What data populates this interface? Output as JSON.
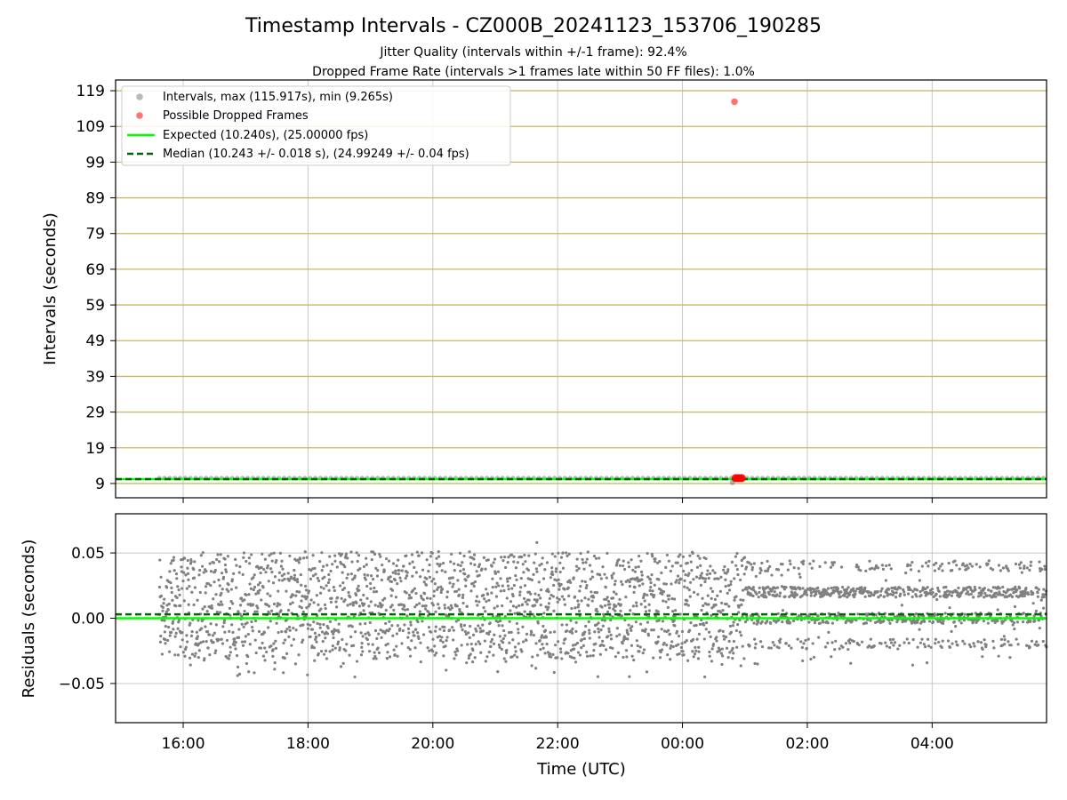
{
  "title": "Timestamp Intervals - CZ000B_20241123_153706_190285",
  "subtitle_1": "Jitter Quality (intervals within +/-1 frame): 92.4%",
  "subtitle_2": "Dropped Frame Rate (intervals >1 frames late within 50 FF files): 1.0%",
  "colors": {
    "intervals": "#808080",
    "dropped": "#ff0000",
    "expected": "#00ff00",
    "median": "#006400",
    "hgrid_top": "#c8b86a",
    "grid": "#b0b0b0"
  },
  "chart_data": [
    {
      "type": "scatter",
      "panel": "intervals",
      "ylabel": "Intervals (seconds)",
      "ylim": [
        5,
        122
      ],
      "yticks": [
        9,
        19,
        29,
        39,
        49,
        59,
        69,
        79,
        89,
        99,
        109,
        119
      ],
      "xlim": [
        "14:55",
        "05:50"
      ],
      "xticks": [
        "16:00",
        "18:00",
        "20:00",
        "22:00",
        "00:00",
        "02:00",
        "04:00"
      ],
      "x_range_data": [
        "15:37",
        "05:50"
      ],
      "intervals_band": [
        10.1,
        10.45
      ],
      "intervals_min": 9.265,
      "intervals_max": 115.917,
      "dropped_points": [
        {
          "time": "00:50",
          "value": 115.917
        },
        {
          "time": "00:51",
          "value": 10.5
        },
        {
          "time": "00:53",
          "value": 10.5
        },
        {
          "time": "00:55",
          "value": 10.5
        },
        {
          "time": "00:57",
          "value": 10.5
        }
      ],
      "expected": 10.24,
      "median": 10.243,
      "grid": true,
      "legend": {
        "position": "top-left",
        "entries": [
          "Intervals, max (115.917s), min (9.265s)",
          "Possible Dropped Frames",
          "Expected (10.240s), (25.00000 fps)",
          "Median (10.243 +/- 0.018 s), (24.99249 +/- 0.04 fps)"
        ]
      }
    },
    {
      "type": "scatter",
      "panel": "residuals",
      "xlabel": "Time (UTC)",
      "ylabel": "Residuals (seconds)",
      "ylim": [
        -0.08,
        0.08
      ],
      "yticks": [
        0.05,
        0.0,
        -0.05
      ],
      "ytick_labels": [
        "0.05",
        "0.00",
        "−0.05"
      ],
      "xlim": [
        "14:55",
        "05:50"
      ],
      "xticks": [
        "16:00",
        "18:00",
        "20:00",
        "22:00",
        "00:00",
        "02:00",
        "04:00"
      ],
      "expected_residual": 0.0,
      "median_residual": 0.003,
      "residual_levels_before_01h": [
        -0.02,
        0.0,
        0.02,
        0.04
      ],
      "residual_levels_after_01h": [
        -0.02,
        0.0,
        0.02,
        0.04
      ],
      "residual_extremes": [
        -0.045,
        0.058
      ],
      "grid": true
    }
  ]
}
